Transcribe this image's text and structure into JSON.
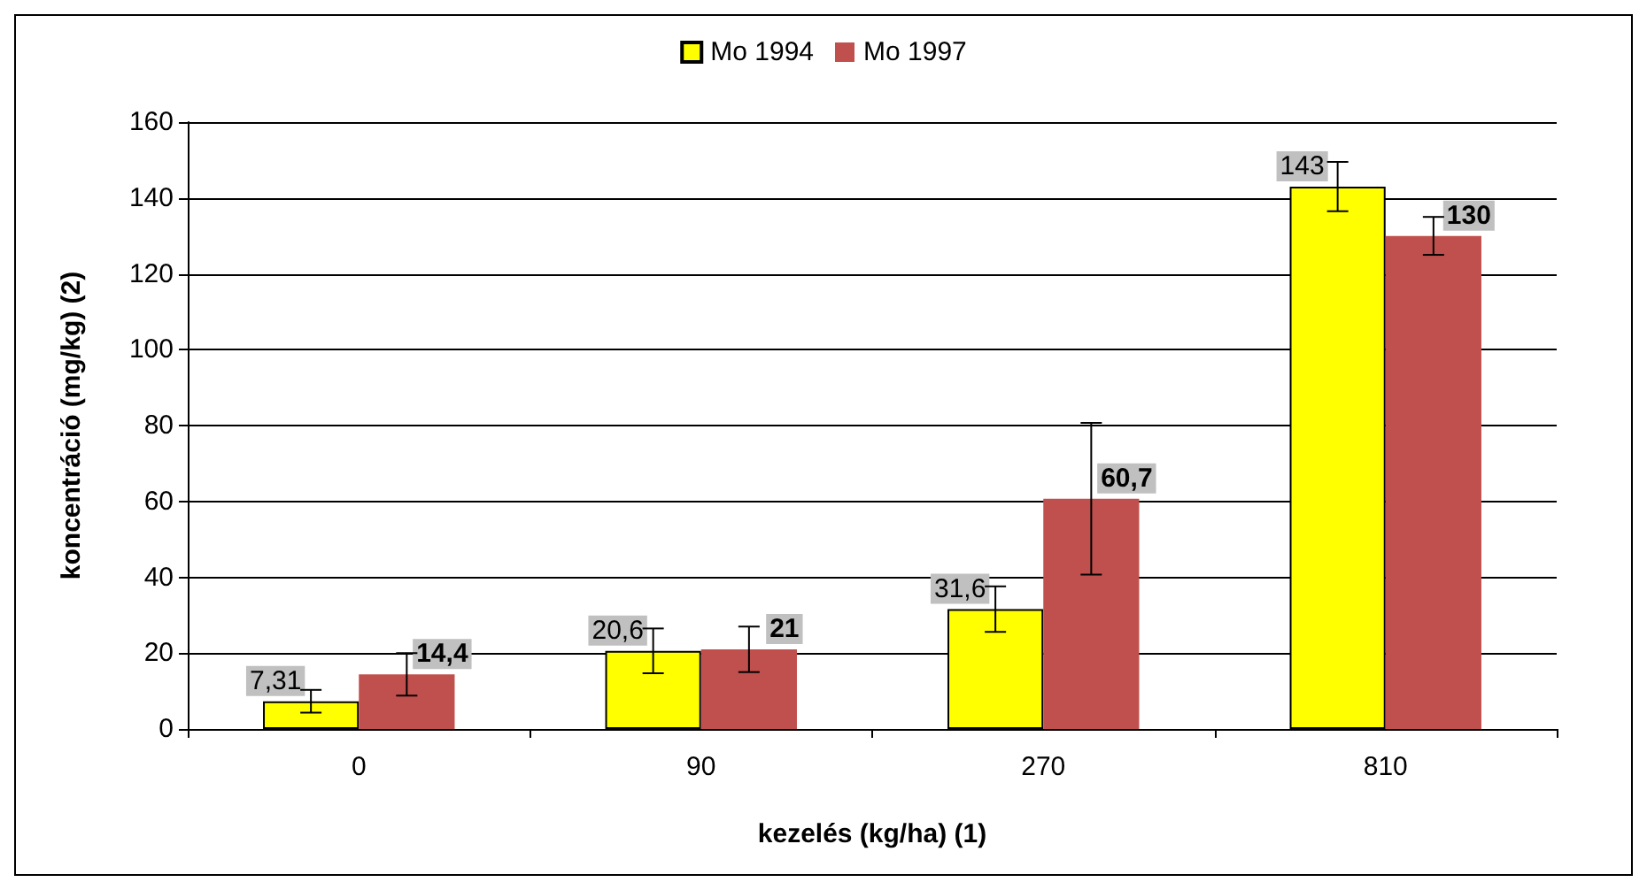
{
  "chart_data": {
    "type": "bar",
    "xlabel": "kezelés (kg/ha) (1)",
    "ylabel": "koncentráció (mg/kg) (2)",
    "categories": [
      "0",
      "90",
      "270",
      "810"
    ],
    "series": [
      {
        "name": "Mo 1994",
        "color": "#ffff00",
        "values": [
          7.31,
          20.6,
          31.6,
          143
        ],
        "errors": [
          3,
          5.9,
          6,
          6.5
        ],
        "value_labels": [
          "7,31",
          "20,6",
          "31,6",
          "143"
        ]
      },
      {
        "name": "Mo 1997",
        "color": "#c0504d",
        "values": [
          14.4,
          21,
          60.7,
          130
        ],
        "errors": [
          5.6,
          6,
          20,
          5
        ],
        "value_labels": [
          "14,4",
          "21",
          "60,7",
          "130"
        ]
      }
    ],
    "ylim": [
      0,
      160
    ],
    "yticks": [
      0,
      20,
      40,
      60,
      80,
      100,
      120,
      140,
      160
    ],
    "grid": "y",
    "legend": "top"
  }
}
